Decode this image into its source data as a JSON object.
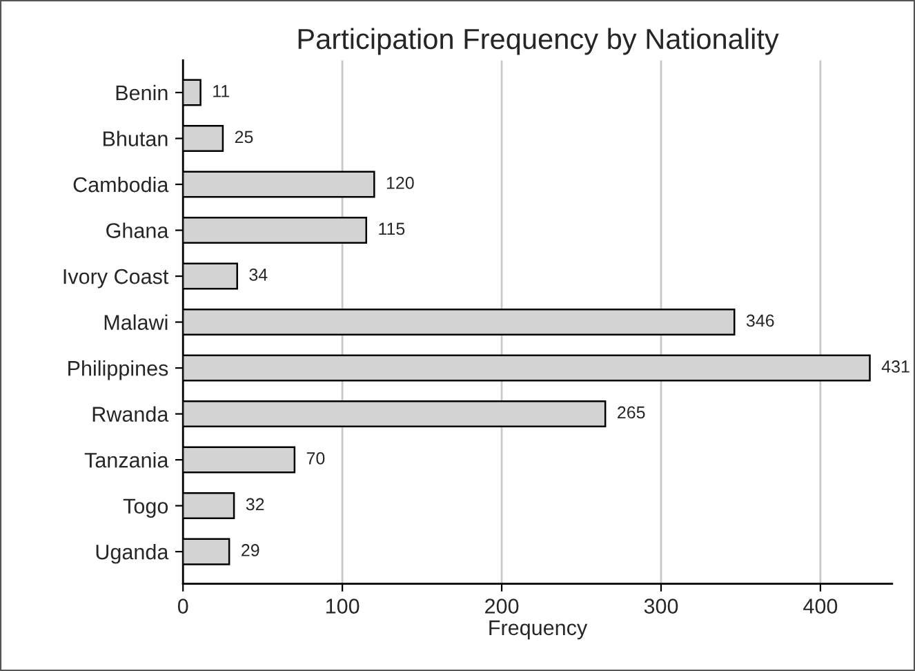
{
  "chart_data": {
    "type": "bar",
    "orientation": "horizontal",
    "title": "Participation Frequency by Nationality",
    "xlabel": "Frequency",
    "categories": [
      "Benin",
      "Bhutan",
      "Cambodia",
      "Ghana",
      "Ivory Coast",
      "Malawi",
      "Philippines",
      "Rwanda",
      "Tanzania",
      "Togo",
      "Uganda"
    ],
    "values": [
      11,
      25,
      120,
      115,
      34,
      346,
      431,
      265,
      70,
      32,
      29
    ],
    "color": "#d3d3d3",
    "xlim": [
      0,
      445
    ],
    "xticks": [
      0,
      100,
      200,
      300,
      400
    ],
    "grid": "x",
    "data_labels": true
  }
}
